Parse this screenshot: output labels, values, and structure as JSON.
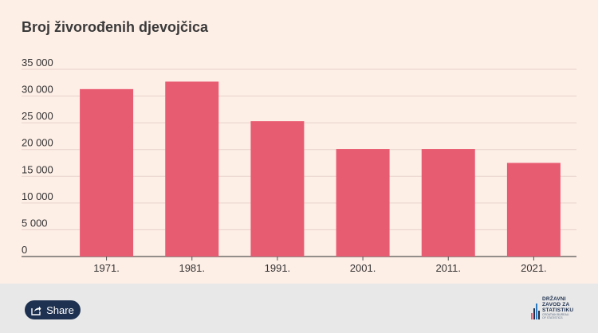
{
  "chart_data": {
    "type": "bar",
    "title": "Broj živorođenih djevojčica",
    "categories": [
      "1971.",
      "1981.",
      "1991.",
      "2001.",
      "2011.",
      "2021."
    ],
    "values": [
      31300,
      32700,
      25300,
      20100,
      20100,
      17500
    ],
    "ylim": [
      0,
      35000
    ],
    "yticks": [
      0,
      5000,
      10000,
      15000,
      20000,
      25000,
      30000,
      35000
    ],
    "ytick_labels": [
      "0",
      "5 000",
      "10 000",
      "15 000",
      "20 000",
      "25 000",
      "30 000",
      "35 000"
    ],
    "grid": true,
    "bar_color": "#e85c72",
    "xlabel": "",
    "ylabel": ""
  },
  "footer": {
    "share_label": "Share",
    "share_icon": "share-icon",
    "logo": {
      "line1": "DRŽAVNI",
      "line2": "ZAVOD ZA",
      "line3": "STATISTIKU",
      "line4": "CROATIAN BUREAU",
      "line5": "OF STATISTICS"
    }
  },
  "colors": {
    "panel_bg": "#fdeee6",
    "footer_bg": "#e8e8e8",
    "button_bg": "#1e3150"
  }
}
